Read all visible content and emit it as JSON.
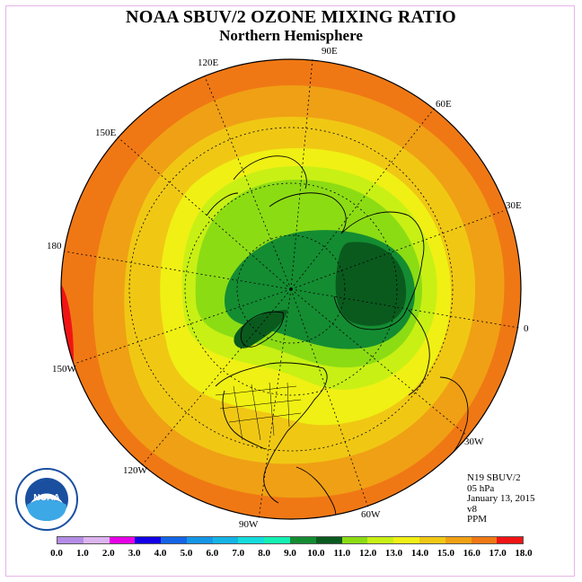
{
  "title": "NOAA SBUV/2 OZONE MIXING RATIO",
  "subtitle": "Northern Hemisphere",
  "lon_labels": [
    "90E",
    "60E",
    "30E",
    "0",
    "30W",
    "60W",
    "90W",
    "120W",
    "150W",
    "180",
    "150E",
    "120E"
  ],
  "info": {
    "satellite": "N19 SBUV/2",
    "level": "05 hPa",
    "date": "January 13, 2015",
    "version": "v8",
    "units": "PPM"
  },
  "logo": {
    "text": "NOAA",
    "icon": "noaa-logo-icon"
  },
  "colorbar": {
    "ticks": [
      "0.0",
      "1.0",
      "2.0",
      "3.0",
      "4.0",
      "5.0",
      "6.0",
      "7.0",
      "8.0",
      "9.0",
      "10.0",
      "11.0",
      "12.0",
      "13.0",
      "14.0",
      "15.0",
      "16.0",
      "17.0",
      "18.0"
    ],
    "colors": [
      "#b48ce6",
      "#dcb4f0",
      "#e600e6",
      "#1400e6",
      "#1464e6",
      "#1496e6",
      "#14b4e6",
      "#14dcdc",
      "#14f0b4",
      "#148c32",
      "#0a5a1e",
      "#8cdc14",
      "#c8f014",
      "#f0f014",
      "#f0c814",
      "#f0a014",
      "#f07814",
      "#f01414",
      "#8c5a3c"
    ]
  },
  "map_levels": {
    "outer": "#f07814",
    "ring15": "#f0a014",
    "ring14": "#f0c814",
    "ring13": "#f0f014",
    "ring12": "#c8f014",
    "ring11": "#8cdc14",
    "center10": "#148c32",
    "max9": "#0a5a1e",
    "edge16": "#f01414"
  }
}
